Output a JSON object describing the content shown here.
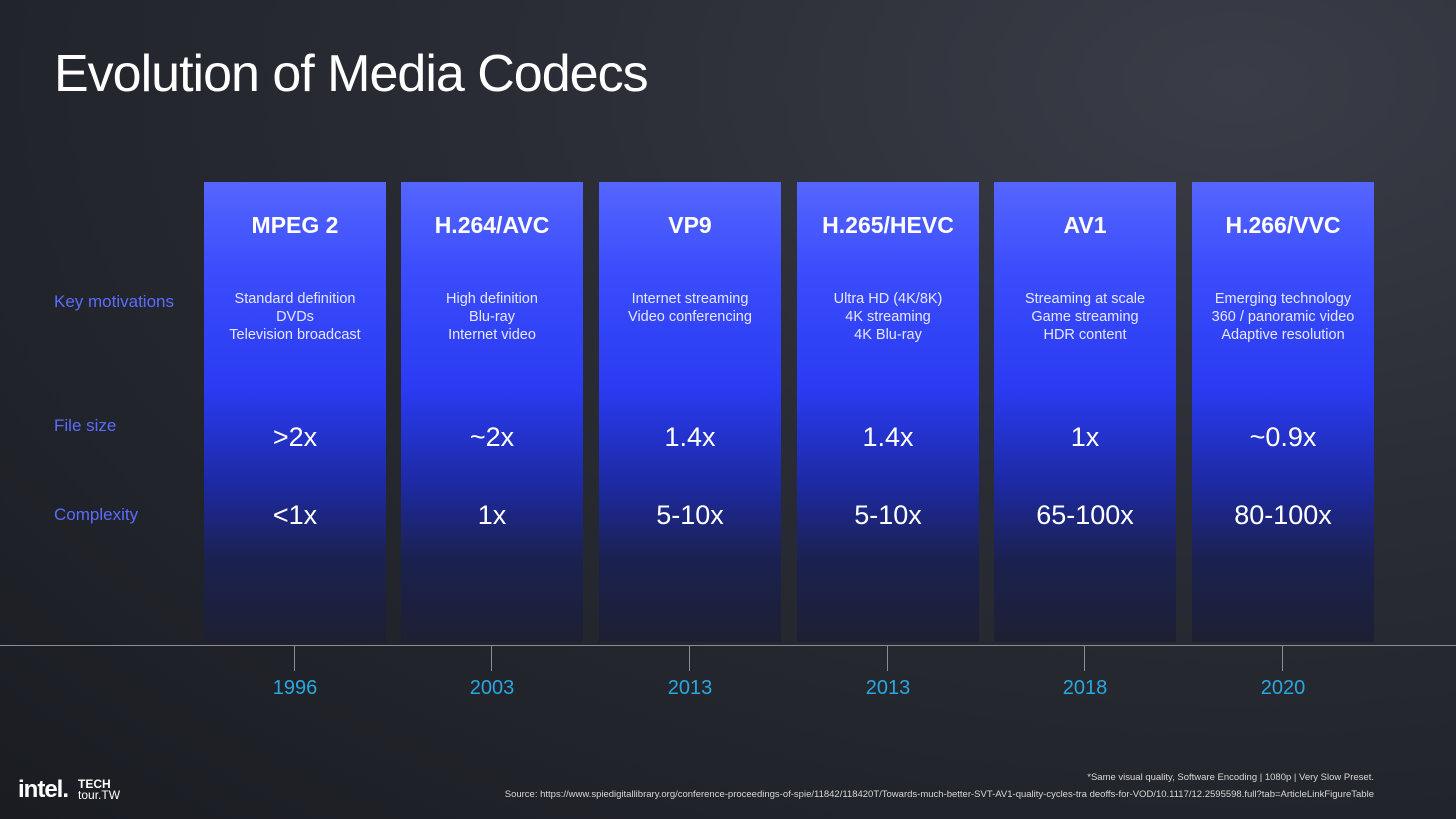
{
  "title": "Evolution of Media Codecs",
  "row_labels": {
    "motivations": "Key motivations",
    "file_size": "File size",
    "complexity": "Complexity"
  },
  "codecs": [
    {
      "name": "MPEG 2",
      "motivations": [
        "Standard definition",
        "DVDs",
        "Television broadcast"
      ],
      "file_size": ">2x",
      "complexity": "<1x",
      "year": "1996"
    },
    {
      "name": "H.264/AVC",
      "motivations": [
        "High definition",
        "Blu-ray",
        "Internet video"
      ],
      "file_size": "~2x",
      "complexity": "1x",
      "year": "2003"
    },
    {
      "name": "VP9",
      "motivations": [
        "Internet streaming",
        "Video conferencing"
      ],
      "file_size": "1.4x",
      "complexity": "5-10x",
      "year": "2013"
    },
    {
      "name": "H.265/HEVC",
      "motivations": [
        "Ultra HD (4K/8K)",
        "4K streaming",
        "4K Blu-ray"
      ],
      "file_size": "1.4x",
      "complexity": "5-10x",
      "year": "2013"
    },
    {
      "name": "AV1",
      "motivations": [
        "Streaming at scale",
        "Game streaming",
        "HDR content"
      ],
      "file_size": "1x",
      "complexity": "65-100x",
      "year": "2018"
    },
    {
      "name": "H.266/VVC",
      "motivations": [
        "Emerging technology",
        "360 / panoramic video",
        "Adaptive resolution"
      ],
      "file_size": "~0.9x",
      "complexity": "80-100x",
      "year": "2020"
    }
  ],
  "footnote": "*Same visual quality, Software Encoding | 1080p | Very Slow Preset.",
  "source": "Source: https://www.spiedigitallibrary.org/conference-proceedings-of-spie/11842/118420T/Towards-much-better-SVT-AV1-quality-cycles-tra deoffs-for-VOD/10.1117/12.2595598.full?tab=ArticleLinkFigureTable",
  "logo": {
    "intel": "intel.",
    "tech": "TECH",
    "tour": "tour.TW"
  }
}
